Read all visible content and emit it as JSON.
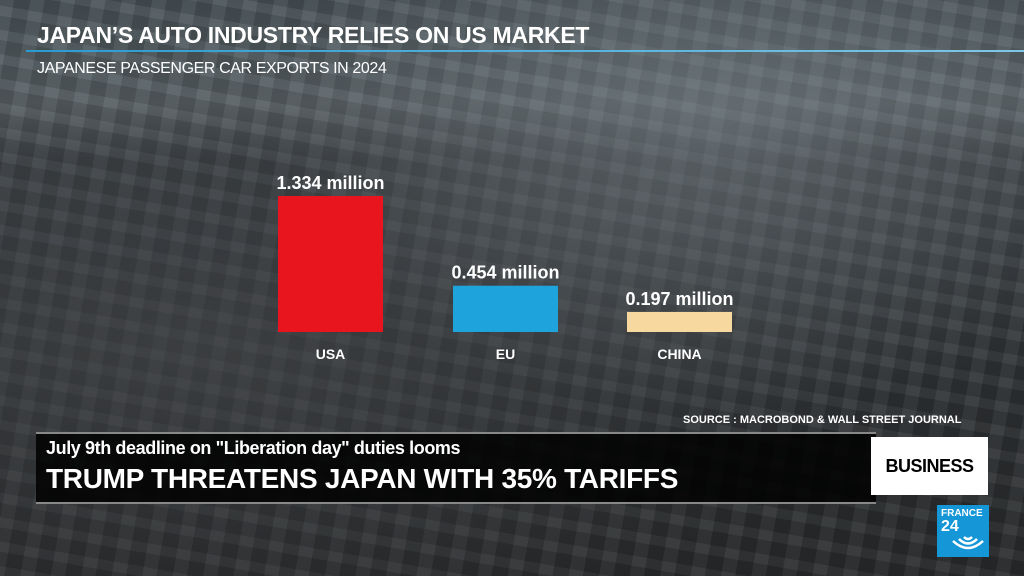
{
  "header": {
    "title": "JAPAN’S AUTO INDUSTRY RELIES ON US MARKET",
    "subtitle": "JAPANESE PASSENGER CAR EXPORTS IN 2024"
  },
  "chart_data": {
    "type": "bar",
    "title": "JAPAN’S AUTO INDUSTRY RELIES ON US MARKET",
    "subtitle": "JAPANESE PASSENGER CAR EXPORTS IN 2024",
    "categories": [
      "USA",
      "EU",
      "CHINA"
    ],
    "values": [
      1.334,
      0.454,
      0.197
    ],
    "value_labels": [
      "1.334 million",
      "0.454 million",
      "0.197 million"
    ],
    "colors": [
      "#e8141e",
      "#1fa3dc",
      "#f7d9a0"
    ],
    "unit": "million",
    "grid": false,
    "ylim": [
      0,
      1.334
    ]
  },
  "source": "SOURCE : MACROBOND & WALL STREET JOURNAL",
  "lower_third": {
    "kicker": "July 9th deadline on \"Liberation day\" duties looms",
    "headline": "TRUMP THREATENS JAPAN WITH 35% TARIFFS",
    "section": "BUSINESS"
  },
  "logo": {
    "line1": "FRANCE",
    "line2": "24",
    "color": "#1596d6"
  }
}
